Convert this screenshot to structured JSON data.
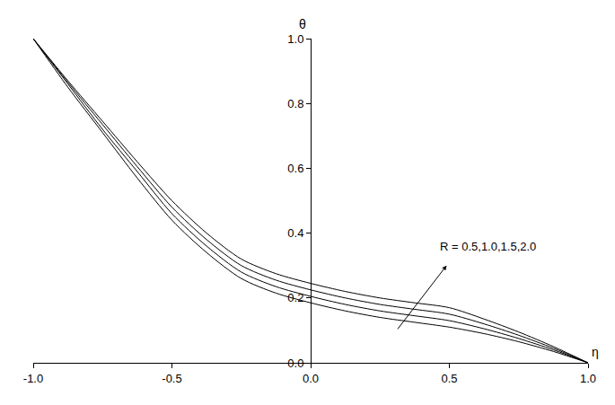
{
  "chart_data": {
    "type": "line",
    "x_label": "η",
    "y_label": "θ",
    "x": [
      -1,
      -0.875,
      -0.75,
      -0.625,
      -0.5,
      -0.375,
      -0.25,
      -0.125,
      0,
      0.125,
      0.25,
      0.375,
      0.5,
      0.625,
      0.75,
      0.875,
      1
    ],
    "series": [
      {
        "color": "#000000",
        "values": [
          1,
          0.85,
          0.71,
          0.57,
          0.44,
          0.34,
          0.26,
          0.215,
          0.185,
          0.16,
          0.14,
          0.125,
          0.11,
          0.09,
          0.065,
          0.035,
          0
        ]
      },
      {
        "color": "#000000",
        "values": [
          1,
          0.86,
          0.72,
          0.59,
          0.46,
          0.36,
          0.28,
          0.235,
          0.205,
          0.18,
          0.16,
          0.145,
          0.13,
          0.105,
          0.075,
          0.04,
          0
        ]
      },
      {
        "color": "#000000",
        "values": [
          1,
          0.865,
          0.735,
          0.605,
          0.48,
          0.38,
          0.3,
          0.255,
          0.225,
          0.2,
          0.18,
          0.165,
          0.15,
          0.12,
          0.085,
          0.045,
          0
        ]
      },
      {
        "color": "#000000",
        "values": [
          1,
          0.87,
          0.745,
          0.62,
          0.5,
          0.4,
          0.32,
          0.275,
          0.245,
          0.22,
          0.2,
          0.185,
          0.17,
          0.135,
          0.095,
          0.05,
          0
        ]
      }
    ],
    "xlim": [
      -1,
      1
    ],
    "xticks": [
      {
        "value": -1,
        "label": "-1.0"
      },
      {
        "value": -0.5,
        "label": "-0.5"
      },
      {
        "value": 0,
        "label": "0.0"
      },
      {
        "value": 0.5,
        "label": "0.5"
      },
      {
        "value": 1,
        "label": "1.0"
      }
    ],
    "ylim": [
      0,
      1
    ],
    "yticks": [
      {
        "value": 0,
        "label": "0.0"
      },
      {
        "value": 0.2,
        "label": "0.2"
      },
      {
        "value": 0.4,
        "label": "0.4"
      },
      {
        "value": 0.6,
        "label": "0.6"
      },
      {
        "value": 0.8,
        "label": "0.8"
      },
      {
        "value": 1,
        "label": "1.0"
      }
    ],
    "grid": false,
    "annotations": [
      {
        "text": "R = 0.5,1.0,1.5,2.0",
        "x": 0.64,
        "y": 0.36,
        "arrow_from": [
          0.31,
          0.1
        ],
        "arrow_to": [
          0.49,
          0.3
        ]
      }
    ]
  }
}
